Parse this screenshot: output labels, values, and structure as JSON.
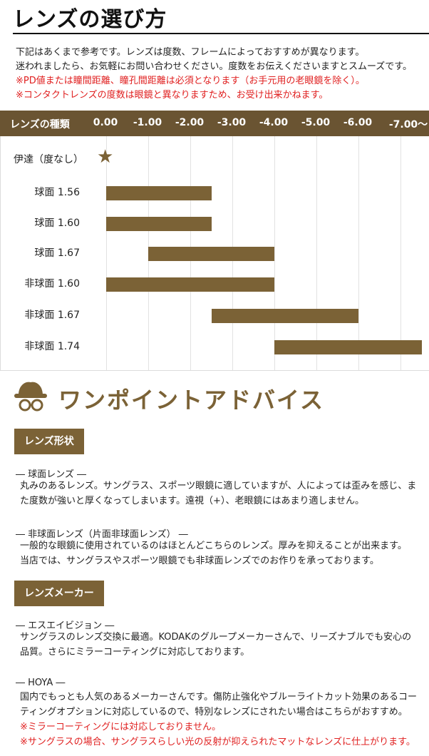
{
  "page_title": "レンズの選び方",
  "intro": {
    "line1": "下記はあくまで参考です。レンズは度数、フレームによっておすすめが異なります。",
    "line2": "迷われましたら、お気軽にお問い合わせください。度数をお伝えくださいますとスムーズです。",
    "line3": "※PD値または瞳間距離、瞳孔間距離は必須となります（お手元用の老眼鏡を除く）。",
    "line4": "※コンタクトレンズの度数は眼鏡と異なりますため、お受け出来かねます。"
  },
  "colors": {
    "brown": "#6a5432",
    "bar": "#7b6236",
    "red": "#e02020"
  },
  "chart_data": {
    "type": "bar",
    "orientation": "horizontal-range",
    "category_header": "レンズの種類",
    "x_ticks": [
      "0.00",
      "-1.00",
      "-2.00",
      "-3.00",
      "-4.00",
      "-5.00",
      "-6.00",
      "-7.00〜"
    ],
    "x_tick_values": [
      0,
      -1,
      -2,
      -3,
      -4,
      -5,
      -6,
      -7
    ],
    "rows": [
      {
        "label": "伊達（度なし）",
        "marker": "star",
        "from": 0,
        "to": 0
      },
      {
        "label": "球面 1.56",
        "from": 0,
        "to": -2.5
      },
      {
        "label": "球面 1.60",
        "from": 0,
        "to": -2.5
      },
      {
        "label": "球面 1.67",
        "from": -1.0,
        "to": -4.0
      },
      {
        "label": "非球面 1.60",
        "from": 0,
        "to": -4.0
      },
      {
        "label": "非球面 1.67",
        "from": -2.5,
        "to": -6.0
      },
      {
        "label": "非球面 1.74",
        "from": -4.0,
        "to": -7.5
      }
    ]
  },
  "advice": {
    "title": "ワンポイントアドバイス",
    "icon": "hat-glasses-icon",
    "sections": [
      {
        "tag": "レンズ形状",
        "items": [
          {
            "head": "― 球面レンズ ―",
            "lines": [
              "丸みのあるレンズ。サングラス、スポーツ眼鏡に適していますが、人によっては歪みを感じ、ま",
              "た度数が強いと厚くなってしまいます。遠視（+）、老眼鏡にはあまり適しません。"
            ],
            "red_lines": []
          },
          {
            "head": "― 非球面レンズ（片面非球面レンズ） ―",
            "lines": [
              "一般的な眼鏡に使用されているのはほとんどこちらのレンズ。厚みを抑えることが出来ます。",
              "当店では、サングラスやスポーツ眼鏡でも非球面レンズでのお作りを承っております。"
            ],
            "red_lines": []
          }
        ]
      },
      {
        "tag": "レンズメーカー",
        "items": [
          {
            "head": "― エスエイビジョン ―",
            "lines": [
              "サングラスのレンズ交換に最適。KODAKのグループメーカーさんで、リーズナブルでも安心の",
              "品質。さらにミラーコーティングに対応しております。"
            ],
            "red_lines": []
          },
          {
            "head": "― HOYA ―",
            "lines": [
              "国内でもっとも人気のあるメーカーさんです。傷防止強化やブルーライトカット効果のあるコー",
              "ティングオプションに対応しているので、特別なレンズにされたい場合はこちらがおすすめ。"
            ],
            "red_lines": [
              "※ミラーコーティングには対応しておりません。",
              "※サングラスの場合、サングラスらしい光の反射が抑えられたマットなレンズに仕上がります。"
            ]
          }
        ]
      }
    ]
  }
}
